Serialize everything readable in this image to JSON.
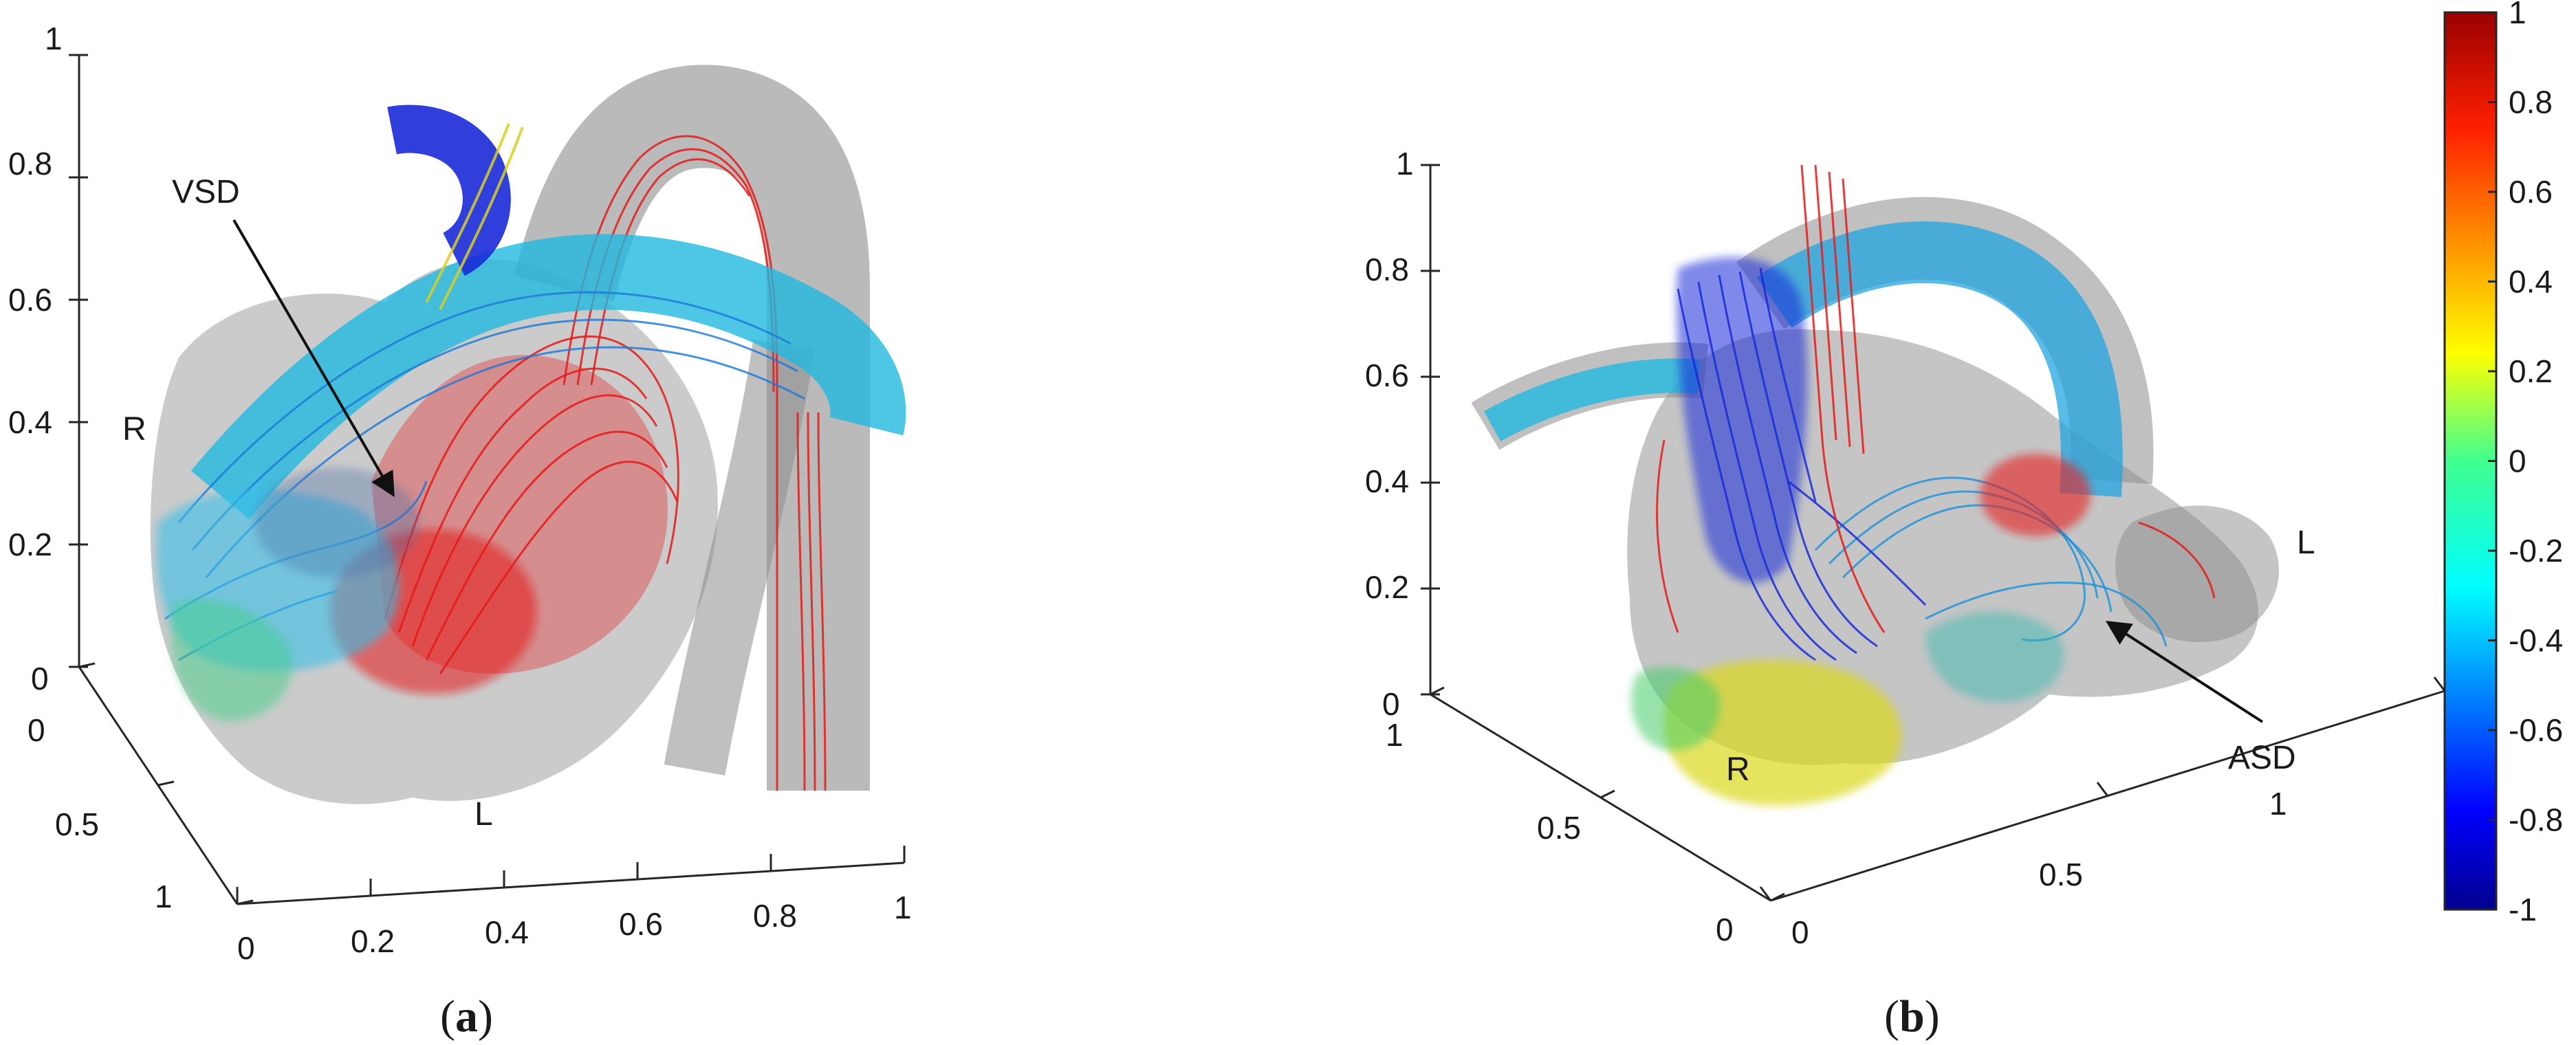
{
  "figure": {
    "panels": [
      {
        "label_open": "(",
        "label_letter": "a",
        "label_close": ")",
        "annotations": {
          "defect": "VSD",
          "right": "R",
          "left": "L"
        },
        "z_ticks": [
          "0",
          "0.2",
          "0.4",
          "0.6",
          "0.8",
          "1"
        ],
        "x_ticks": [
          "0",
          "0.2",
          "0.4",
          "0.6",
          "0.8",
          "1"
        ],
        "y_ticks": [
          "0",
          "0.5",
          "1"
        ]
      },
      {
        "label_open": "(",
        "label_letter": "b",
        "label_close": ")",
        "annotations": {
          "defect": "ASD",
          "right": "R",
          "left": "L"
        },
        "z_ticks": [
          "0",
          "0.2",
          "0.4",
          "0.6",
          "0.8",
          "1"
        ],
        "y_ticks": [
          "1",
          "0.5",
          "0"
        ],
        "x_ticks": [
          "0",
          "0.5",
          "1"
        ]
      }
    ],
    "colorbar": {
      "ticks": [
        "1",
        "0.8",
        "0.6",
        "0.4",
        "0.2",
        "0",
        "-0.2",
        "-0.4",
        "-0.6",
        "-0.8",
        "-1"
      ],
      "min": -1,
      "max": 1,
      "colormap": "jet"
    },
    "colors": {
      "positive_flow": "#e81a1a",
      "negative_flow": "#1a2ad8",
      "mid_flow": "#22c4e8",
      "vessel_shell": "#8c8c8c"
    }
  }
}
